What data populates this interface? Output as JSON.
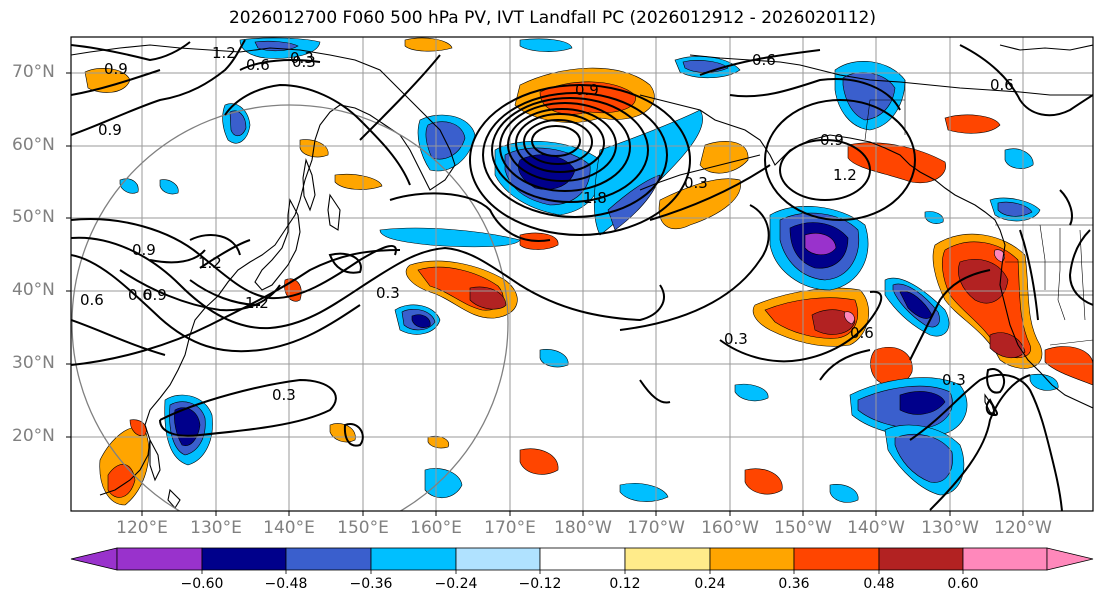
{
  "title": "2026012700 F060 500 hPa PV, IVT Landfall PC (2026012912 - 2026020112)",
  "lat_labels": [
    "70°N",
    "60°N",
    "50°N",
    "40°N",
    "30°N",
    "20°N"
  ],
  "lon_labels": [
    "120°E",
    "130°E",
    "140°E",
    "150°E",
    "160°E",
    "170°E",
    "180°W",
    "170°W",
    "160°W",
    "150°W",
    "140°W",
    "130°W",
    "120°W"
  ],
  "colorbar": {
    "ticks": [
      "−0.60",
      "−0.48",
      "−0.36",
      "−0.24",
      "−0.12",
      "0.12",
      "0.24",
      "0.36",
      "0.48",
      "0.60"
    ],
    "colors": [
      "#9932cc",
      "#00008b",
      "#3a5fcd",
      "#00bfff",
      "#b0e2ff",
      "#ffffff",
      "#ffeb8a",
      "#ffa500",
      "#ff4500",
      "#b22222",
      "#ff88bb"
    ]
  },
  "contour_labels": [
    "1.2",
    "0.9",
    "0.6",
    "0.3",
    "0.9",
    "0.6",
    "0.9",
    "1.8",
    "0.3",
    "0.6",
    "0.9",
    "1.2",
    "0.9",
    "0.6",
    "1.2",
    "0.6",
    "0.9",
    "1.2",
    "0.3",
    "0.3",
    "0.3",
    "0.6",
    "0.3",
    "0.3"
  ]
}
